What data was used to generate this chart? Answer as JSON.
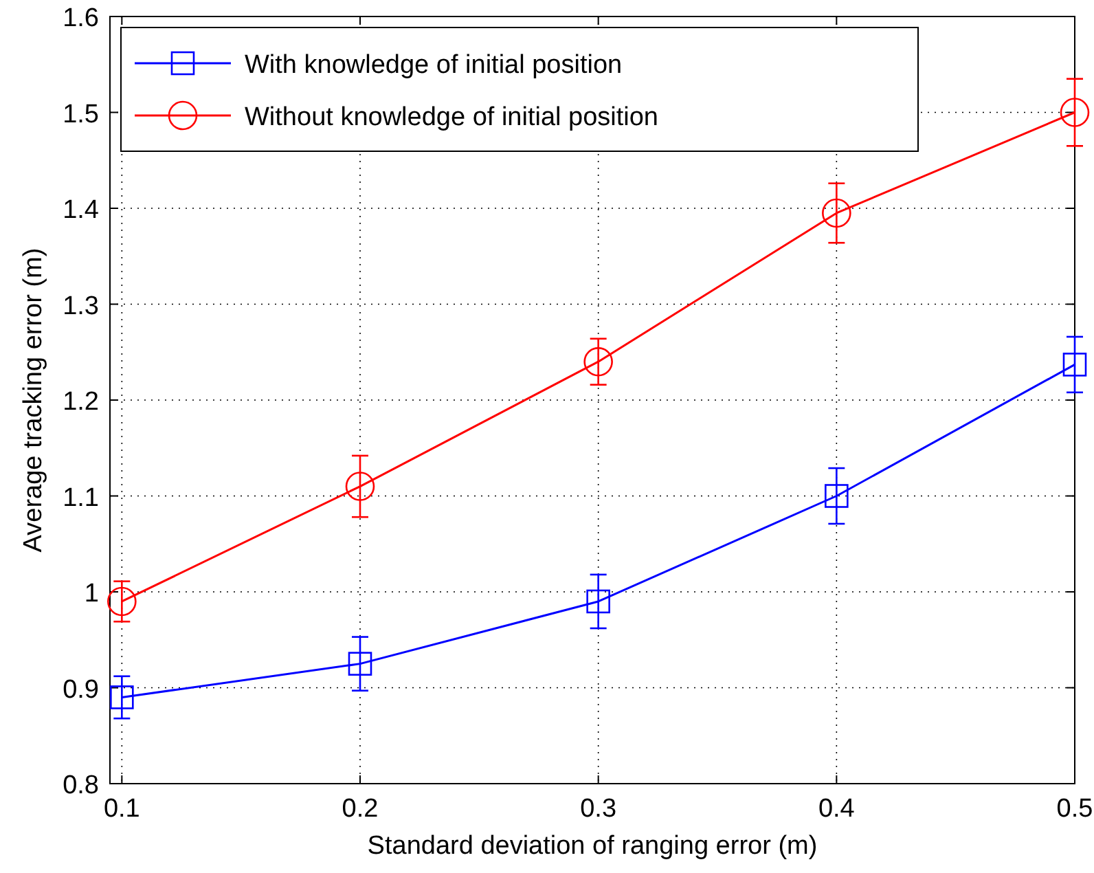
{
  "chart_data": {
    "type": "line",
    "xlabel": "Standard deviation of ranging error (m)",
    "ylabel": "Average tracking error (m)",
    "x": [
      0.1,
      0.2,
      0.3,
      0.4,
      0.5
    ],
    "xlim": [
      0.095,
      0.5
    ],
    "xticks": [
      0.1,
      0.2,
      0.3,
      0.4,
      0.5
    ],
    "ylim": [
      0.8,
      1.6
    ],
    "yticks": [
      0.8,
      0.9,
      1,
      1.1,
      1.2,
      1.3,
      1.4,
      1.5,
      1.6
    ],
    "grid": true,
    "legend": "top left",
    "series": [
      {
        "name": "With knowledge of initial position",
        "color": "#0000ff",
        "marker": "square",
        "values": [
          0.89,
          0.925,
          0.99,
          1.1,
          1.237
        ],
        "errors": [
          0.022,
          0.028,
          0.028,
          0.029,
          0.029
        ]
      },
      {
        "name": "Without knowledge of initial position",
        "color": "#ff0000",
        "marker": "circle",
        "values": [
          0.99,
          1.11,
          1.24,
          1.395,
          1.5
        ],
        "errors": [
          0.021,
          0.032,
          0.024,
          0.031,
          0.035
        ]
      }
    ]
  }
}
